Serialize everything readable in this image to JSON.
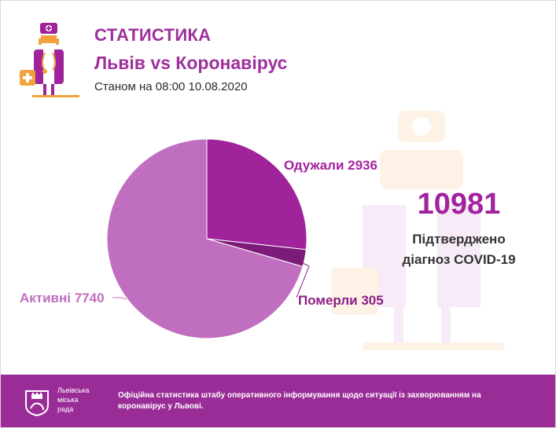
{
  "header": {
    "title": "СТАТИСТИКА",
    "subtitle": "Львів vs Коронавірус",
    "date": "Станом на 08:00 10.08.2020"
  },
  "summary": {
    "total": "10981",
    "label_line1": "Підтверджено",
    "label_line2": "діагноз COVID-19"
  },
  "chart_data": {
    "type": "pie",
    "slices": [
      {
        "name": "Одужали",
        "value": 2936,
        "label": "Одужали 2936",
        "color": "#a1239c",
        "label_color": "#a3229f"
      },
      {
        "name": "Померли",
        "value": 305,
        "label": "Померли 305",
        "color": "#7d1b79",
        "label_color": "#8a1f86"
      },
      {
        "name": "Активні",
        "value": 7740,
        "label": "Активні 7740",
        "color": "#c06ec0",
        "label_color": "#c06ec0"
      }
    ]
  },
  "footer": {
    "city_line1": "Львівська",
    "city_line2": "міська",
    "city_line3": "рада",
    "text": "Офіційна статистика штабу оперативного інформування щодо ситуації із захворюванням на коронавірус у Львові."
  },
  "colors": {
    "brand": "#9e2f9c",
    "footer_bg": "#9a2c98",
    "accent_orange": "#f0a23c"
  }
}
